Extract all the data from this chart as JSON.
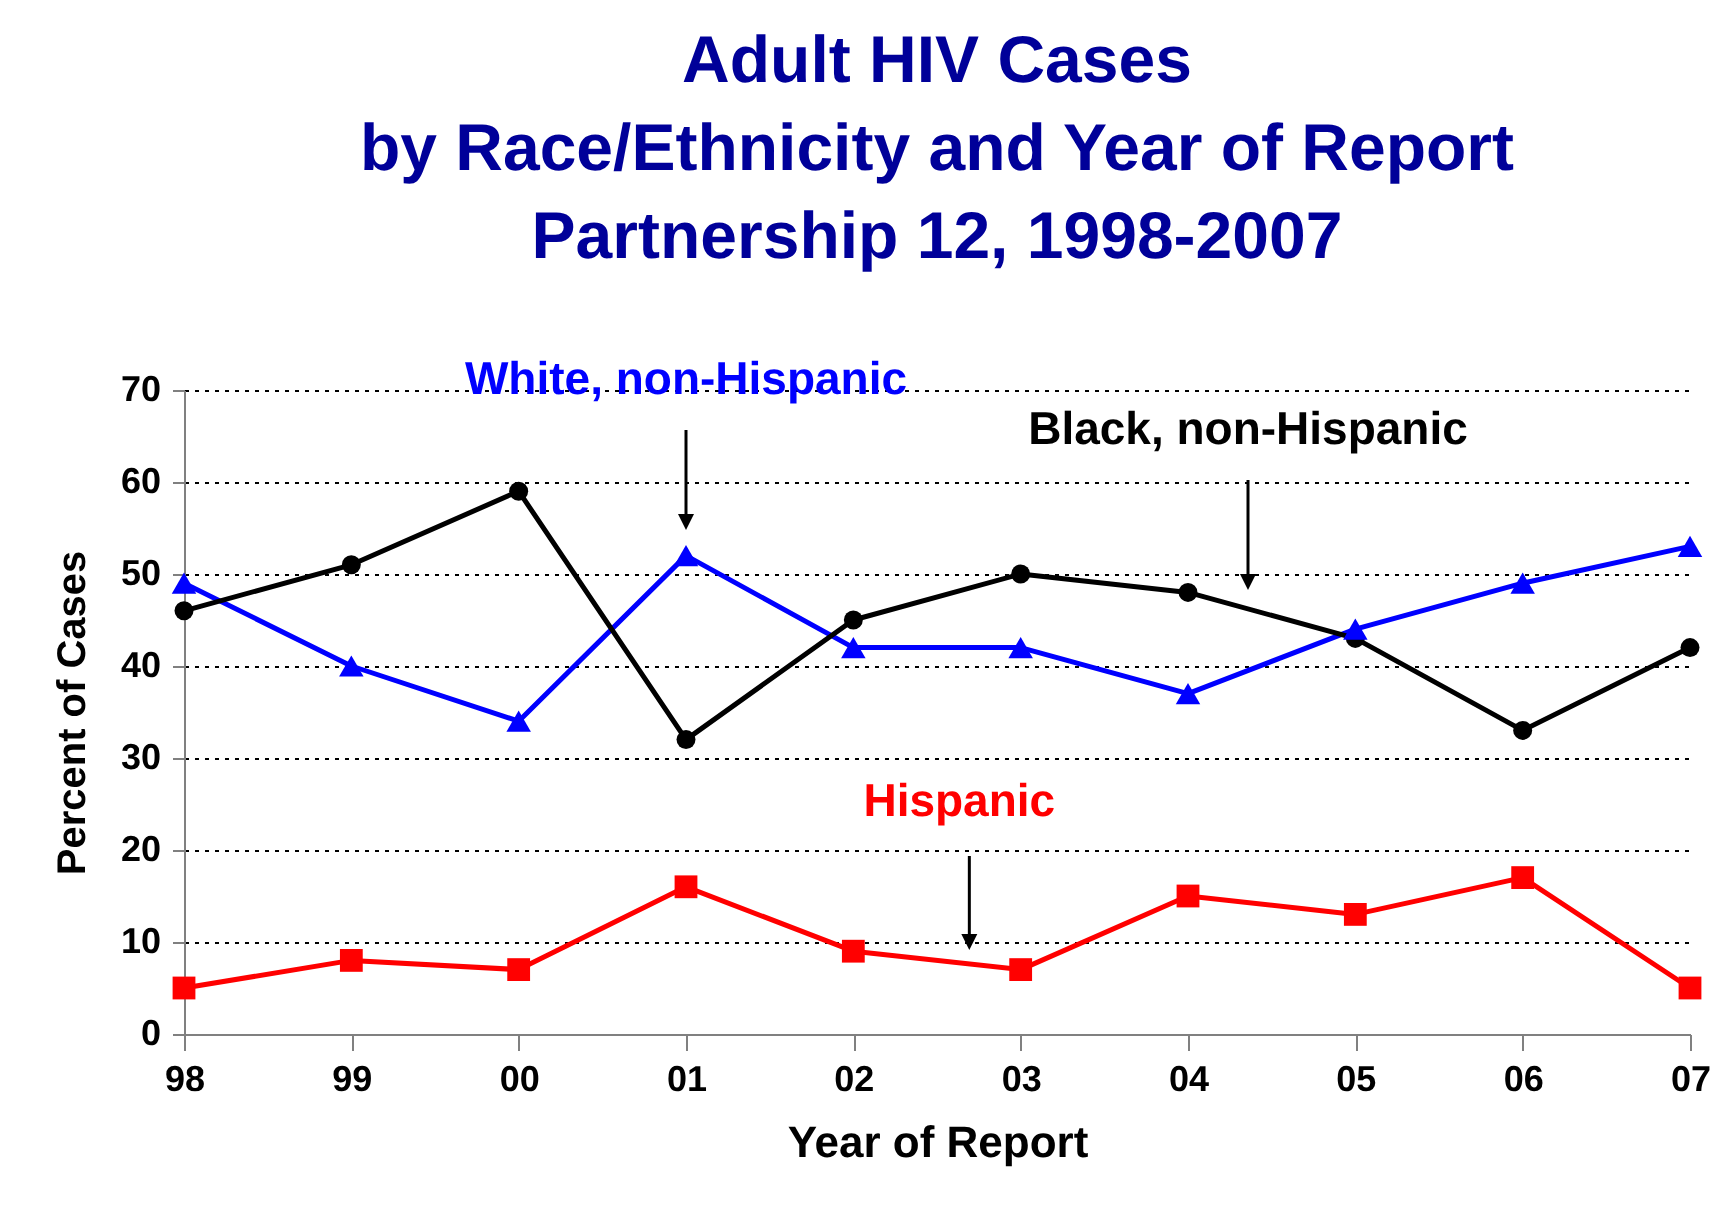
{
  "chart_data": {
    "type": "line",
    "title": [
      "Adult HIV Cases",
      "by Race/Ethnicity and Year of Report",
      "Partnership 12, 1998-2007"
    ],
    "xlabel": "Year of Report",
    "ylabel": "Percent of Cases",
    "categories": [
      "98",
      "99",
      "00",
      "01",
      "02",
      "03",
      "04",
      "05",
      "06",
      "07"
    ],
    "series": [
      {
        "name": "White, non-Hispanic",
        "color": "#0000ff",
        "marker": "triangle",
        "values": [
          49,
          40,
          34,
          52,
          42,
          42,
          37,
          44,
          49,
          53
        ]
      },
      {
        "name": "Black, non-Hispanic",
        "color": "#000000",
        "marker": "circle",
        "values": [
          46,
          51,
          59,
          32,
          45,
          50,
          48,
          43,
          33,
          42
        ]
      },
      {
        "name": "Hispanic",
        "color": "#ff0000",
        "marker": "square",
        "values": [
          5,
          8,
          7,
          16,
          9,
          7,
          15,
          13,
          17,
          5
        ]
      }
    ],
    "ylim": [
      0,
      70
    ],
    "yticks": [
      0,
      10,
      20,
      30,
      40,
      50,
      60,
      70
    ],
    "grid": "y",
    "legend": false,
    "line_style": "solid"
  }
}
